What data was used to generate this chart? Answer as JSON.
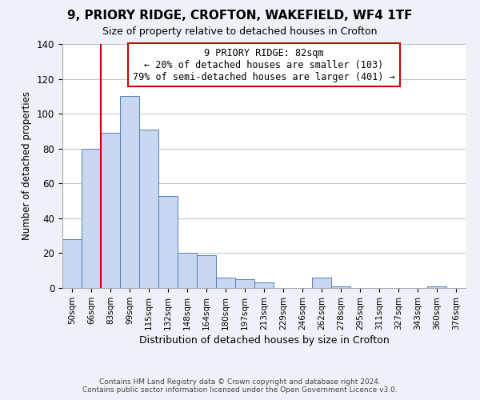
{
  "title": "9, PRIORY RIDGE, CROFTON, WAKEFIELD, WF4 1TF",
  "subtitle": "Size of property relative to detached houses in Crofton",
  "xlabel": "Distribution of detached houses by size in Crofton",
  "ylabel": "Number of detached properties",
  "bar_labels": [
    "50sqm",
    "66sqm",
    "83sqm",
    "99sqm",
    "115sqm",
    "132sqm",
    "148sqm",
    "164sqm",
    "180sqm",
    "197sqm",
    "213sqm",
    "229sqm",
    "246sqm",
    "262sqm",
    "278sqm",
    "295sqm",
    "311sqm",
    "327sqm",
    "343sqm",
    "360sqm",
    "376sqm"
  ],
  "bar_values": [
    28,
    80,
    89,
    110,
    91,
    53,
    20,
    19,
    6,
    5,
    3,
    0,
    0,
    6,
    1,
    0,
    0,
    0,
    0,
    1,
    0
  ],
  "bar_color": "#c8d8f0",
  "bar_edge_color": "#5080b8",
  "ylim": [
    0,
    140
  ],
  "yticks": [
    0,
    20,
    40,
    60,
    80,
    100,
    120,
    140
  ],
  "property_line_label": "9 PRIORY RIDGE: 82sqm",
  "annotation_line1": "← 20% of detached houses are smaller (103)",
  "annotation_line2": "79% of semi-detached houses are larger (401) →",
  "annotation_box_color": "#ffffff",
  "annotation_box_edge": "#cc0000",
  "line_color": "#cc0000",
  "footer1": "Contains HM Land Registry data © Crown copyright and database right 2024.",
  "footer2": "Contains public sector information licensed under the Open Government Licence v3.0.",
  "background_color": "#eef2f8",
  "plot_bg_color": "#ffffff",
  "grid_color": "#aabbd0",
  "property_line_bar_index": 2
}
